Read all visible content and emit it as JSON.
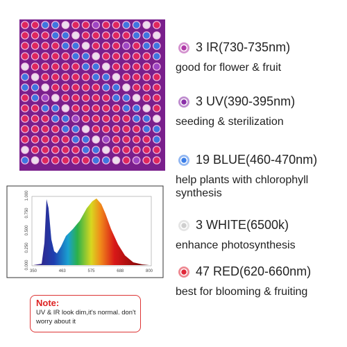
{
  "items": [
    {
      "title": "3 IR(730-735nm)",
      "text": "good for flower & fruit"
    },
    {
      "title": "3 UV(390-395nm)",
      "text": "seeding & sterilization"
    },
    {
      "title": "19 BLUE(460-470nm)",
      "text": "help plants with chlorophyll synthesis"
    },
    {
      "title": "3 WHITE(6500k)",
      "text": "enhance photosynthesis"
    },
    {
      "title": "47 RED(620-660nm)",
      "text": "best for blooming & fruiting"
    }
  ],
  "spectrum": {
    "xticks": [
      "350",
      "463",
      "575",
      "688",
      "800"
    ],
    "yticks": [
      "0.000",
      "0.250",
      "0.500",
      "0.750",
      "1.000"
    ]
  },
  "note": {
    "title": "Note:",
    "text": "UV & IR look dim,it's normal. don't worry about it"
  }
}
